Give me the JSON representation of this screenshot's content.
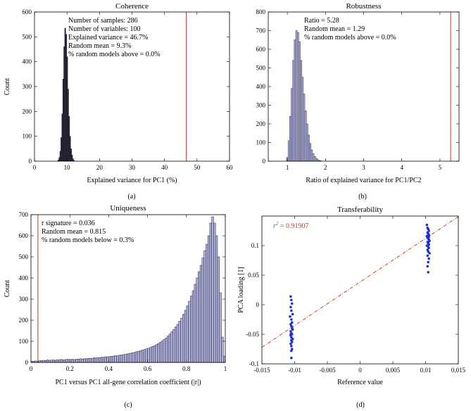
{
  "panels": [
    {
      "id": "a",
      "caption": "(a)",
      "chart_data": {
        "type": "histogram",
        "title": "Coherence",
        "xlabel": "Explained variance for PC1 (%)",
        "ylabel": "Count",
        "xlim": [
          0,
          60
        ],
        "ylim": [
          0,
          600
        ],
        "xticks": [
          0,
          10,
          20,
          30,
          40,
          50,
          60
        ],
        "yticks": [
          0,
          100,
          200,
          300,
          400,
          500,
          600
        ],
        "bar_color": "#2a2a36",
        "bins": [
          [
            7.2,
            7.5,
            5
          ],
          [
            7.5,
            7.8,
            15
          ],
          [
            7.8,
            8.1,
            40
          ],
          [
            8.1,
            8.4,
            95
          ],
          [
            8.4,
            8.7,
            190
          ],
          [
            8.7,
            9.0,
            330
          ],
          [
            9.0,
            9.3,
            460
          ],
          [
            9.3,
            9.6,
            535
          ],
          [
            9.6,
            9.9,
            510
          ],
          [
            9.9,
            10.2,
            420
          ],
          [
            10.2,
            10.5,
            290
          ],
          [
            10.5,
            10.8,
            180
          ],
          [
            10.8,
            11.1,
            100
          ],
          [
            11.1,
            11.4,
            50
          ],
          [
            11.4,
            11.7,
            25
          ],
          [
            11.7,
            12.0,
            10
          ],
          [
            12.0,
            12.3,
            3
          ]
        ],
        "marker_line": {
          "x": 46.7,
          "color": "#c0392b"
        },
        "annotations": [
          "Number of samples: 286",
          "Number of variables: 100",
          "Explained variance = 46.7%",
          "Random mean = 9.3%",
          "% random models above = 0.0%"
        ]
      }
    },
    {
      "id": "b",
      "caption": "(b)",
      "chart_data": {
        "type": "histogram",
        "title": "Robustness",
        "xlabel": "Ratio of explained variance for PC1/PC2",
        "ylabel": "",
        "xlim": [
          0.5,
          5.5
        ],
        "ylim": [
          0,
          800
        ],
        "xticks": [
          1,
          2,
          3,
          4,
          5
        ],
        "yticks": [
          0,
          100,
          200,
          300,
          400,
          500,
          600,
          700,
          800
        ],
        "bar_color": "#b3b3e0",
        "bins": [
          [
            0.98,
            1.02,
            20
          ],
          [
            1.02,
            1.06,
            110
          ],
          [
            1.06,
            1.1,
            240
          ],
          [
            1.1,
            1.14,
            390
          ],
          [
            1.14,
            1.18,
            540
          ],
          [
            1.18,
            1.22,
            650
          ],
          [
            1.22,
            1.26,
            700
          ],
          [
            1.26,
            1.3,
            690
          ],
          [
            1.3,
            1.34,
            640
          ],
          [
            1.34,
            1.38,
            540
          ],
          [
            1.38,
            1.42,
            450
          ],
          [
            1.42,
            1.46,
            360
          ],
          [
            1.46,
            1.5,
            270
          ],
          [
            1.5,
            1.54,
            200
          ],
          [
            1.54,
            1.58,
            140
          ],
          [
            1.58,
            1.62,
            95
          ],
          [
            1.62,
            1.66,
            60
          ],
          [
            1.66,
            1.7,
            40
          ],
          [
            1.7,
            1.74,
            25
          ],
          [
            1.74,
            1.78,
            15
          ],
          [
            1.78,
            1.82,
            8
          ],
          [
            1.82,
            1.86,
            4
          ],
          [
            1.86,
            1.9,
            2
          ]
        ],
        "marker_line": {
          "x": 5.28,
          "color": "#c0392b"
        },
        "annotations": [
          "Ratio = 5.28",
          "Random mean = 1.29",
          "% random models above = 0.0%"
        ]
      }
    },
    {
      "id": "c",
      "caption": "(c)",
      "chart_data": {
        "type": "histogram",
        "title": "Uniqueness",
        "xlabel": "PC1 versus PC1 all-gene correlation coefficient (|r|)",
        "ylabel": "Count",
        "xlim": [
          0,
          1
        ],
        "ylim": [
          0,
          700
        ],
        "xticks": [
          0,
          0.2,
          0.4,
          0.6,
          0.8,
          1
        ],
        "yticks": [
          0,
          100,
          200,
          300,
          400,
          500,
          600,
          700
        ],
        "bar_color": "#b3b3e0",
        "bin_width": 0.01,
        "bin_start": 0,
        "counts": [
          5,
          6,
          7,
          6,
          8,
          9,
          10,
          9,
          12,
          10,
          11,
          12,
          10,
          13,
          12,
          14,
          12,
          13,
          15,
          14,
          14,
          15,
          13,
          16,
          15,
          17,
          16,
          18,
          17,
          19,
          20,
          19,
          22,
          21,
          23,
          22,
          25,
          24,
          27,
          26,
          28,
          29,
          30,
          32,
          31,
          34,
          35,
          37,
          38,
          40,
          42,
          44,
          46,
          48,
          51,
          53,
          56,
          58,
          61,
          64,
          67,
          71,
          75,
          79,
          84,
          89,
          95,
          101,
          108,
          116,
          125,
          134,
          145,
          156,
          168,
          180,
          195,
          210,
          228,
          247,
          268,
          290,
          315,
          340,
          370,
          400,
          430,
          460,
          495,
          530,
          560,
          600,
          660,
          690,
          660,
          600,
          500,
          330,
          120,
          30
        ],
        "marker_line": {
          "x": 0.036,
          "color": "#c0392b"
        },
        "annotations": [
          "r signature = 0.036",
          "Random mean = 0.815",
          "% random models below = 0.3%"
        ]
      }
    },
    {
      "id": "d",
      "caption": "(d)",
      "chart_data": {
        "type": "scatter",
        "title": "Transferability",
        "xlabel": "Reference value",
        "ylabel": "PCA loading [1]",
        "xlim": [
          -0.015,
          0.015
        ],
        "ylim": [
          -0.1,
          0.15
        ],
        "xticks": [
          -0.015,
          -0.01,
          -0.005,
          0,
          0.005,
          0.01,
          0.015
        ],
        "xtick_labels": [
          "-0.015",
          "-0.01",
          "-0.005",
          "0",
          "0.005",
          "0.01",
          "0.015"
        ],
        "yticks": [
          -0.1,
          -0.05,
          0,
          0.05,
          0.1
        ],
        "ytick_labels": [
          "-0.1",
          "-0.05",
          "0",
          "0.05",
          "0.1"
        ],
        "point_color": "#1f2fd1",
        "fit_line": {
          "color": "#d04020",
          "x": [
            -0.015,
            0.015
          ],
          "y": [
            -0.072,
            0.149
          ]
        },
        "annotation_prefix": "r",
        "annotation_sup": "2",
        "annotation_value": " = 0.91907",
        "points_x": [
          -0.0106,
          -0.0105,
          -0.0104,
          -0.0106,
          -0.0105,
          -0.0103,
          -0.0107,
          -0.0105,
          -0.0104,
          -0.0106,
          -0.0105,
          -0.0104,
          -0.0103,
          -0.0106,
          -0.0105,
          -0.0104,
          -0.0106,
          -0.0105,
          -0.0103,
          -0.0105,
          -0.0104,
          -0.0106,
          -0.0105,
          -0.0104,
          -0.0105,
          -0.0106,
          -0.0104,
          -0.0105,
          0.0102,
          0.0103,
          0.0104,
          0.0105,
          0.0103,
          0.0104,
          0.0105,
          0.0102,
          0.0103,
          0.0104,
          0.0105,
          0.0106,
          0.0103,
          0.0104,
          0.0105,
          0.0102,
          0.0104,
          0.0105,
          0.0103,
          0.0104,
          0.0106,
          0.0103,
          0.0105,
          0.0104,
          0.0103,
          0.0104,
          0.0105,
          0.0104
        ],
        "points_y": [
          0.014,
          0.008,
          0.002,
          -0.004,
          -0.01,
          -0.016,
          -0.02,
          -0.025,
          -0.03,
          -0.033,
          -0.036,
          -0.039,
          -0.042,
          -0.045,
          -0.048,
          -0.05,
          -0.052,
          -0.055,
          -0.058,
          -0.06,
          -0.063,
          -0.066,
          -0.07,
          -0.075,
          -0.078,
          -0.05,
          -0.04,
          -0.09,
          0.135,
          0.13,
          0.128,
          0.125,
          0.122,
          0.12,
          0.118,
          0.116,
          0.114,
          0.112,
          0.11,
          0.108,
          0.106,
          0.104,
          0.102,
          0.1,
          0.098,
          0.096,
          0.093,
          0.09,
          0.087,
          0.083,
          0.078,
          0.072,
          0.065,
          0.055,
          0.115,
          0.105
        ]
      }
    }
  ]
}
